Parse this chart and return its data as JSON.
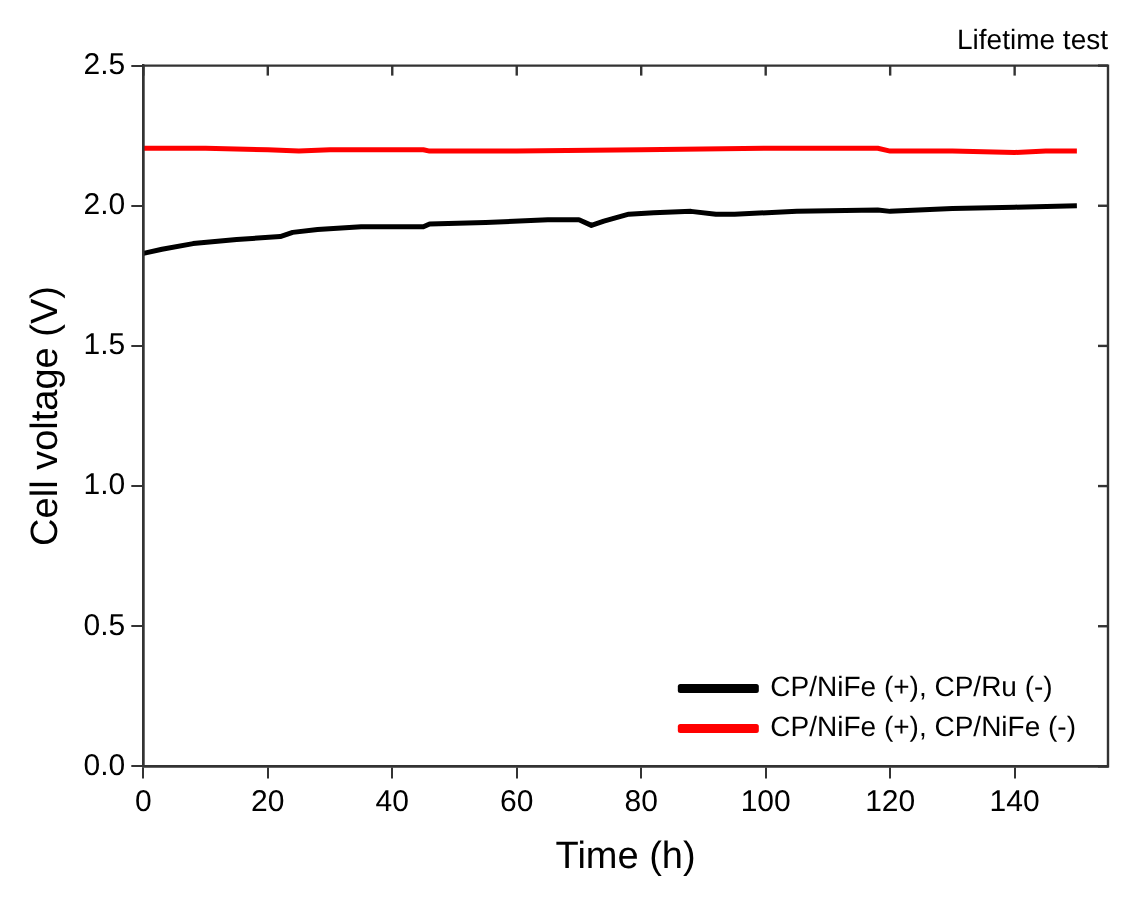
{
  "chart_data": {
    "type": "line",
    "title": "Lifetime test",
    "xlabel": "Time (h)",
    "ylabel": "Cell voltage (V)",
    "xlim": [
      0,
      155
    ],
    "xticks": [
      0,
      20,
      40,
      60,
      80,
      100,
      120,
      140
    ],
    "ylim": [
      0,
      2.5
    ],
    "yticks": [
      {
        "value": 0,
        "label": "0.0"
      },
      {
        "value": 0.5,
        "label": "0.5"
      },
      {
        "value": 1,
        "label": "1.0"
      },
      {
        "value": 1.5,
        "label": "1.5"
      },
      {
        "value": 2,
        "label": "2.0"
      },
      {
        "value": 2.5,
        "label": "2.5"
      }
    ],
    "legend": "bottom right",
    "grid": false,
    "marker": "none",
    "line_style": "solid",
    "series": [
      {
        "name": "CP/NiFe (+), CP/Ru (-)",
        "color": "#000000",
        "x": [
          0,
          3,
          8,
          15,
          22,
          24,
          28,
          35,
          45,
          46,
          55,
          65,
          70,
          72,
          74,
          78,
          82,
          88,
          92,
          95,
          105,
          118,
          120,
          130,
          140,
          150
        ],
        "values": [
          1.83,
          1.845,
          1.865,
          1.88,
          1.89,
          1.905,
          1.915,
          1.925,
          1.925,
          1.935,
          1.94,
          1.95,
          1.95,
          1.93,
          1.945,
          1.97,
          1.975,
          1.98,
          1.97,
          1.97,
          1.98,
          1.985,
          1.98,
          1.99,
          1.995,
          2.0
        ]
      },
      {
        "name": "CP/NiFe (+), CP/NiFe (-)",
        "color": "#ff0000",
        "x": [
          0,
          10,
          20,
          25,
          30,
          45,
          46,
          60,
          80,
          100,
          118,
          120,
          130,
          140,
          145,
          150
        ],
        "values": [
          2.205,
          2.205,
          2.2,
          2.195,
          2.2,
          2.2,
          2.195,
          2.195,
          2.2,
          2.205,
          2.205,
          2.195,
          2.195,
          2.19,
          2.195,
          2.195
        ]
      }
    ]
  }
}
